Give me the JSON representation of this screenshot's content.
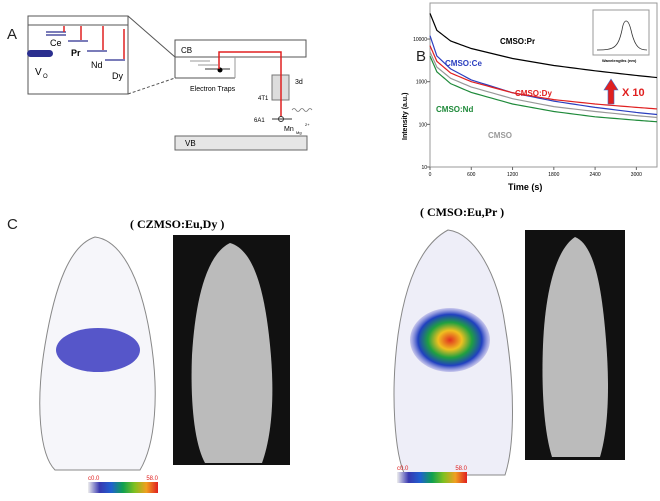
{
  "panels": {
    "a": {
      "label": "A",
      "levels": [
        "Ce",
        "Pr",
        "Nd",
        "Dy"
      ],
      "vo": "V",
      "vo_sub": "O",
      "cb": "CB",
      "vb": "VB",
      "traps": "Electron Traps",
      "d3": "3d",
      "t1": "4T1",
      "a1": "6A1",
      "mn": "Mn",
      "mn_sub": "Mg",
      "mn_sup": "2+"
    },
    "b": {
      "label": "B"
    },
    "c": {
      "label": "C",
      "left_title": "( CZMSO:Eu,Dy )",
      "right_title": "( CMSO:Eu,Pr )",
      "colorbar_min": "c0.0",
      "colorbar_max": "58.0"
    }
  },
  "chart_data": {
    "type": "line",
    "xlabel": "Time (s)",
    "ylabel": "Intensity (a.u.)",
    "x_ticks": [
      0,
      600,
      1200,
      1800,
      2400,
      3000
    ],
    "y_ticks": [
      10,
      100,
      1000,
      10000
    ],
    "y_scale": "log",
    "xlim": [
      0,
      3300
    ],
    "ylim": [
      10,
      70000
    ],
    "x": [
      0,
      100,
      300,
      600,
      1200,
      1800,
      2400,
      3000,
      3300
    ],
    "series": [
      {
        "name": "CMSO:Pr",
        "color": "#000000",
        "values": [
          40000,
          16000,
          9000,
          6000,
          3500,
          2400,
          1800,
          1400,
          1250
        ]
      },
      {
        "name": "CMSO:Ce",
        "color": "#2b3fbf",
        "values": [
          12000,
          4000,
          2000,
          1100,
          550,
          350,
          250,
          190,
          170
        ]
      },
      {
        "name": "CMSO:Dy",
        "color": "#e02020",
        "values": [
          7000,
          3000,
          1600,
          1000,
          550,
          380,
          300,
          250,
          230
        ]
      },
      {
        "name": "CMSO",
        "color": "#999999",
        "values": [
          5000,
          2200,
          1200,
          750,
          400,
          260,
          200,
          160,
          145
        ]
      },
      {
        "name": "CMSO:Nd",
        "color": "#1f8a3a",
        "values": [
          4000,
          1700,
          900,
          560,
          300,
          200,
          150,
          125,
          115
        ]
      }
    ],
    "annotation": "X 10",
    "inset": {
      "xlabel": "Wavelengths (nm)"
    }
  }
}
